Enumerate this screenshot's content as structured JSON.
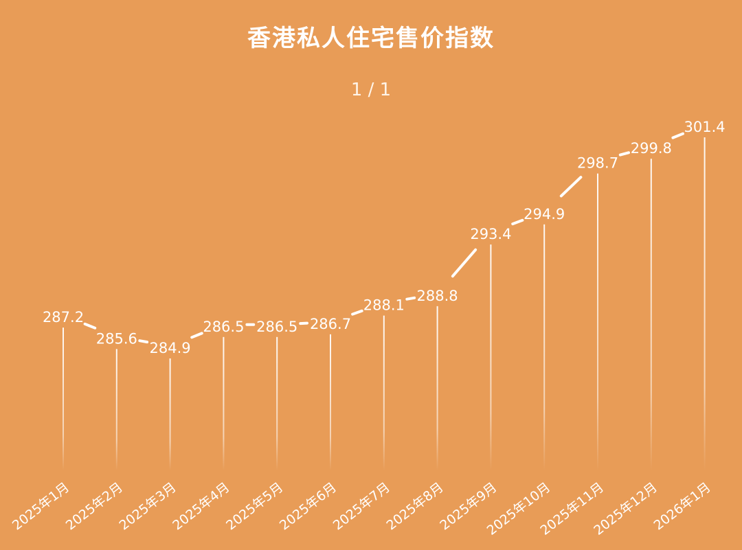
{
  "header": {
    "title": "香港私人住宅售价指数",
    "pager": "1 / 1"
  },
  "colors": {
    "background": "#e89c57",
    "bar": "#ffffff",
    "text": "#ffffff"
  },
  "chart_data": {
    "type": "line",
    "title": "香港私人住宅售价指数",
    "categories": [
      "2025年1月",
      "2025年2月",
      "2025年3月",
      "2025年4月",
      "2025年5月",
      "2025年6月",
      "2025年7月",
      "2025年8月",
      "2025年9月",
      "2025年10月",
      "2025年11月",
      "2025年12月",
      "2026年1月"
    ],
    "values": [
      287.2,
      285.6,
      284.9,
      286.5,
      286.5,
      286.7,
      288.1,
      288.8,
      293.4,
      294.9,
      298.7,
      299.8,
      301.4
    ],
    "value_labels": [
      "287.2",
      "285.6",
      "284.9",
      "286.5",
      "286.5",
      "286.7",
      "288.1",
      "288.8",
      "293.4",
      "294.9",
      "298.7",
      "299.8",
      "301.4"
    ],
    "xlabel": "",
    "ylabel": "",
    "grid": false,
    "legend": "none"
  }
}
